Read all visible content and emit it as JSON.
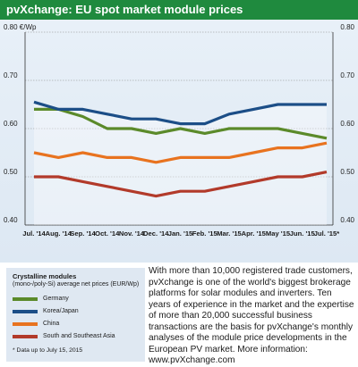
{
  "title": "pvXchange: EU spot market module prices",
  "chart_data": {
    "type": "line",
    "categories": [
      "Jul. '14",
      "Aug. '14",
      "Sep. '14",
      "Oct. '14",
      "Nov. '14",
      "Dec. '14",
      "Jan. '15",
      "Feb. '15",
      "Mar. '15",
      "Apr. '15",
      "May '15",
      "Jun. '15",
      "Jul. '15*"
    ],
    "ylim": [
      0.4,
      0.8
    ],
    "ytick_labels_left": [
      "0.80 €/Wp",
      "0.70",
      "0.60",
      "0.50",
      "0.40"
    ],
    "ytick_labels_right": [
      "0.80",
      "0.70",
      "0.60",
      "0.50",
      "0.40"
    ],
    "yticks": [
      0.8,
      0.7,
      0.6,
      0.5,
      0.4
    ],
    "grid": true,
    "series": [
      {
        "name": "Germany",
        "color": "#5b8a2a",
        "values": [
          0.64,
          0.64,
          0.625,
          0.6,
          0.6,
          0.59,
          0.6,
          0.59,
          0.6,
          0.6,
          0.6,
          0.59,
          0.58
        ]
      },
      {
        "name": "Korea/Japan",
        "color": "#1c4e87",
        "values": [
          0.655,
          0.64,
          0.64,
          0.63,
          0.62,
          0.62,
          0.61,
          0.61,
          0.63,
          0.64,
          0.65,
          0.65,
          0.65
        ]
      },
      {
        "name": "China",
        "color": "#e8731f",
        "values": [
          0.55,
          0.54,
          0.55,
          0.54,
          0.54,
          0.53,
          0.54,
          0.54,
          0.54,
          0.55,
          0.56,
          0.56,
          0.57
        ]
      },
      {
        "name": "South and Southeast Asia",
        "color": "#b23a2a",
        "values": [
          0.5,
          0.5,
          0.49,
          0.48,
          0.47,
          0.46,
          0.47,
          0.47,
          0.48,
          0.49,
          0.5,
          0.5,
          0.51
        ]
      }
    ]
  },
  "legend": {
    "title": "Crystalline modules",
    "subtitle": "(mono-/poly-Si) average net prices (EUR/Wp)",
    "note": "* Data up to July 15, 2015"
  },
  "info_text": "With more than 10,000 registered trade customers, pvXchange is one of the world's biggest brokerage platforms for solar modules and inverters. Ten years of experience in the market and the expertise of more than 20,000 successful business transactions are the basis for pvXchange's monthly analyses of the module price developments in the European PV market. More information: www.pvXchange.com"
}
